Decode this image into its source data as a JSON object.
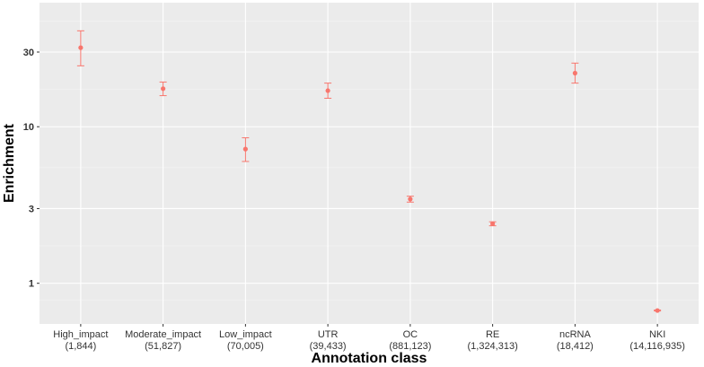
{
  "chart_data": {
    "type": "scatter",
    "title": "",
    "xlabel": "Annotation class",
    "ylabel": "Enrichment",
    "y_scale": "log10",
    "ylim": [
      0.55,
      62
    ],
    "yticks": [
      1,
      3,
      10,
      30
    ],
    "ytick_labels": [
      "1",
      "3",
      "10",
      "30"
    ],
    "grid": true,
    "legend": "none",
    "point_color": "#F8766D",
    "panel_color": "#EBEBEB",
    "categories": [
      {
        "label": "High_impact",
        "count": "(1,844)"
      },
      {
        "label": "Moderate_impact",
        "count": "(51,827)"
      },
      {
        "label": "Low_impact",
        "count": "(70,005)"
      },
      {
        "label": "UTR",
        "count": "(39,433)"
      },
      {
        "label": "OC",
        "count": "(881,123)"
      },
      {
        "label": "RE",
        "count": "(1,324,313)"
      },
      {
        "label": "ncRNA",
        "count": "(18,412)"
      },
      {
        "label": "NKI",
        "count": "(14,116,935)"
      }
    ],
    "values": [
      32,
      17.5,
      7.2,
      17,
      3.45,
      2.4,
      22,
      0.67
    ],
    "error_low": [
      24.5,
      15.8,
      6.0,
      15.2,
      3.3,
      2.33,
      19.0,
      0.665
    ],
    "error_high": [
      41,
      19.3,
      8.5,
      19.0,
      3.6,
      2.47,
      25.5,
      0.675
    ]
  }
}
